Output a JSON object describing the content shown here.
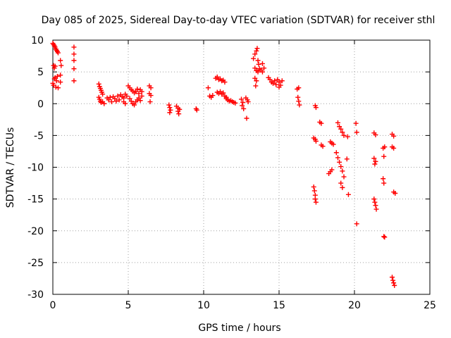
{
  "chart_data": {
    "type": "scatter",
    "title": "Day 085 of 2025, Sidereal Day-to-day VTEC variation (SDTVAR) for receiver sthl",
    "xlabel": "GPS time / hours",
    "ylabel": "SDTVAR / TECUs",
    "xlim": [
      0,
      25
    ],
    "ylim": [
      -30,
      10
    ],
    "xticks": [
      0,
      5,
      10,
      15,
      20,
      25
    ],
    "yticks": [
      10,
      5,
      0,
      -5,
      -10,
      -15,
      -20,
      -25,
      -30
    ],
    "grid": true,
    "marker": "+",
    "series_color": "#ff0000",
    "series": [
      {
        "name": "SDTVAR",
        "points": [
          [
            0.0,
            9.5
          ],
          [
            0.05,
            9.3
          ],
          [
            0.1,
            9.1
          ],
          [
            0.15,
            8.9
          ],
          [
            0.2,
            8.6
          ],
          [
            0.25,
            8.4
          ],
          [
            0.3,
            8.2
          ],
          [
            0.35,
            8.0
          ],
          [
            0.05,
            6.0
          ],
          [
            0.1,
            5.6
          ],
          [
            0.15,
            5.9
          ],
          [
            0.0,
            3.2
          ],
          [
            0.05,
            2.9
          ],
          [
            0.1,
            3.9
          ],
          [
            0.15,
            4.1
          ],
          [
            0.2,
            2.6
          ],
          [
            0.25,
            3.6
          ],
          [
            0.3,
            4.3
          ],
          [
            0.35,
            2.5
          ],
          [
            0.5,
            6.8
          ],
          [
            0.55,
            6.0
          ],
          [
            0.5,
            4.5
          ],
          [
            0.5,
            3.4
          ],
          [
            1.4,
            8.9
          ],
          [
            1.4,
            7.8
          ],
          [
            1.4,
            6.8
          ],
          [
            1.4,
            5.5
          ],
          [
            1.4,
            3.6
          ],
          [
            3.05,
            3.1
          ],
          [
            3.1,
            2.7
          ],
          [
            3.15,
            2.4
          ],
          [
            3.2,
            2.1
          ],
          [
            3.25,
            1.8
          ],
          [
            3.3,
            1.5
          ],
          [
            3.05,
            1.0
          ],
          [
            3.1,
            0.7
          ],
          [
            3.15,
            0.4
          ],
          [
            3.2,
            0.2
          ],
          [
            3.3,
            0.3
          ],
          [
            3.4,
            0.0
          ],
          [
            3.6,
            0.9
          ],
          [
            3.7,
            0.6
          ],
          [
            3.8,
            1.0
          ],
          [
            3.9,
            0.3
          ],
          [
            4.0,
            1.1
          ],
          [
            4.1,
            0.8
          ],
          [
            4.2,
            0.4
          ],
          [
            4.3,
            1.2
          ],
          [
            4.4,
            0.6
          ],
          [
            4.5,
            1.4
          ],
          [
            4.6,
            1.1
          ],
          [
            4.7,
            0.9
          ],
          [
            4.7,
            0.3
          ],
          [
            4.8,
            1.5
          ],
          [
            4.8,
            0.0
          ],
          [
            4.9,
            1.2
          ],
          [
            5.0,
            2.8
          ],
          [
            5.1,
            2.5
          ],
          [
            5.2,
            2.2
          ],
          [
            5.3,
            2.0
          ],
          [
            5.4,
            1.7
          ],
          [
            5.5,
            1.9
          ],
          [
            5.6,
            2.3
          ],
          [
            5.7,
            1.6
          ],
          [
            5.8,
            2.2
          ],
          [
            5.9,
            1.9
          ],
          [
            5.1,
            0.8
          ],
          [
            5.2,
            0.4
          ],
          [
            5.3,
            0.0
          ],
          [
            5.4,
            -0.2
          ],
          [
            5.5,
            0.3
          ],
          [
            5.6,
            0.6
          ],
          [
            5.7,
            0.9
          ],
          [
            5.8,
            0.5
          ],
          [
            5.9,
            1.2
          ],
          [
            6.4,
            2.8
          ],
          [
            6.5,
            2.5
          ],
          [
            6.4,
            1.6
          ],
          [
            6.5,
            1.3
          ],
          [
            6.45,
            0.3
          ],
          [
            7.7,
            -0.2
          ],
          [
            7.75,
            -0.6
          ],
          [
            7.8,
            -1.0
          ],
          [
            7.75,
            -1.4
          ],
          [
            8.2,
            -0.4
          ],
          [
            8.3,
            -0.7
          ],
          [
            8.4,
            -0.9
          ],
          [
            8.3,
            -1.2
          ],
          [
            8.35,
            -1.6
          ],
          [
            9.5,
            -0.8
          ],
          [
            9.55,
            -1.0
          ],
          [
            10.3,
            2.5
          ],
          [
            10.4,
            1.2
          ],
          [
            10.5,
            1.0
          ],
          [
            10.6,
            1.3
          ],
          [
            10.8,
            4.0
          ],
          [
            10.9,
            4.2
          ],
          [
            11.0,
            3.8
          ],
          [
            11.1,
            3.9
          ],
          [
            11.2,
            3.6
          ],
          [
            11.3,
            3.7
          ],
          [
            11.4,
            3.4
          ],
          [
            10.9,
            1.8
          ],
          [
            11.0,
            1.6
          ],
          [
            11.1,
            1.9
          ],
          [
            11.2,
            1.5
          ],
          [
            11.3,
            1.7
          ],
          [
            11.4,
            1.2
          ],
          [
            11.5,
            1.0
          ],
          [
            11.5,
            0.8
          ],
          [
            11.6,
            0.6
          ],
          [
            11.7,
            0.4
          ],
          [
            11.8,
            0.5
          ],
          [
            11.9,
            0.3
          ],
          [
            12.0,
            0.2
          ],
          [
            12.1,
            0.1
          ],
          [
            12.5,
            0.7
          ],
          [
            12.6,
            0.2
          ],
          [
            12.55,
            -0.3
          ],
          [
            12.65,
            -0.8
          ],
          [
            12.8,
            0.9
          ],
          [
            12.9,
            0.6
          ],
          [
            12.95,
            0.3
          ],
          [
            12.85,
            -2.3
          ],
          [
            13.3,
            7.1
          ],
          [
            13.4,
            7.8
          ],
          [
            13.5,
            8.3
          ],
          [
            13.55,
            8.7
          ],
          [
            13.6,
            6.8
          ],
          [
            13.65,
            6.2
          ],
          [
            13.4,
            5.6
          ],
          [
            13.5,
            5.2
          ],
          [
            13.6,
            5.0
          ],
          [
            13.7,
            5.5
          ],
          [
            13.8,
            5.3
          ],
          [
            13.9,
            5.0
          ],
          [
            14.0,
            5.6
          ],
          [
            13.4,
            4.0
          ],
          [
            13.5,
            3.6
          ],
          [
            13.45,
            2.8
          ],
          [
            13.9,
            6.3
          ],
          [
            14.3,
            4.1
          ],
          [
            14.4,
            3.8
          ],
          [
            14.5,
            3.4
          ],
          [
            14.6,
            3.2
          ],
          [
            14.7,
            3.6
          ],
          [
            14.8,
            3.0
          ],
          [
            14.9,
            3.8
          ],
          [
            15.0,
            3.4
          ],
          [
            15.1,
            2.9
          ],
          [
            15.2,
            3.6
          ],
          [
            15.0,
            2.6
          ],
          [
            16.2,
            2.3
          ],
          [
            16.3,
            2.5
          ],
          [
            16.25,
            1.0
          ],
          [
            16.3,
            0.4
          ],
          [
            16.35,
            -0.2
          ],
          [
            17.4,
            -0.3
          ],
          [
            17.45,
            -0.6
          ],
          [
            17.3,
            -5.4
          ],
          [
            17.4,
            -5.6
          ],
          [
            17.45,
            -5.9
          ],
          [
            17.3,
            -13.1
          ],
          [
            17.35,
            -13.7
          ],
          [
            17.4,
            -14.4
          ],
          [
            17.4,
            -15.0
          ],
          [
            17.45,
            -15.5
          ],
          [
            17.7,
            -2.9
          ],
          [
            17.8,
            -3.1
          ],
          [
            17.8,
            -6.5
          ],
          [
            17.9,
            -6.7
          ],
          [
            18.4,
            -6.0
          ],
          [
            18.5,
            -6.2
          ],
          [
            18.6,
            -6.4
          ],
          [
            18.3,
            -11.0
          ],
          [
            18.4,
            -10.7
          ],
          [
            18.5,
            -10.4
          ],
          [
            18.8,
            -7.7
          ],
          [
            18.9,
            -8.5
          ],
          [
            19.0,
            -9.2
          ],
          [
            19.1,
            -9.9
          ],
          [
            19.2,
            -10.6
          ],
          [
            19.3,
            -11.5
          ],
          [
            18.9,
            -3.0
          ],
          [
            19.0,
            -3.6
          ],
          [
            19.1,
            -4.0
          ],
          [
            19.2,
            -4.5
          ],
          [
            19.3,
            -5.0
          ],
          [
            19.1,
            -12.5
          ],
          [
            19.2,
            -13.2
          ],
          [
            19.5,
            -8.7
          ],
          [
            19.6,
            -14.3
          ],
          [
            19.55,
            -5.2
          ],
          [
            20.1,
            -3.1
          ],
          [
            20.15,
            -4.5
          ],
          [
            20.15,
            -18.9
          ],
          [
            21.3,
            -4.6
          ],
          [
            21.4,
            -4.9
          ],
          [
            21.3,
            -8.6
          ],
          [
            21.4,
            -9.1
          ],
          [
            21.35,
            -9.5
          ],
          [
            21.3,
            -15.0
          ],
          [
            21.35,
            -15.5
          ],
          [
            21.4,
            -16.0
          ],
          [
            21.45,
            -16.6
          ],
          [
            21.9,
            -7.0
          ],
          [
            22.0,
            -6.8
          ],
          [
            21.95,
            -8.3
          ],
          [
            21.9,
            -11.8
          ],
          [
            21.95,
            -12.5
          ],
          [
            21.95,
            -20.9
          ],
          [
            22.0,
            -21.0
          ],
          [
            22.5,
            -4.8
          ],
          [
            22.6,
            -5.1
          ],
          [
            22.5,
            -6.8
          ],
          [
            22.6,
            -7.0
          ],
          [
            22.6,
            -13.9
          ],
          [
            22.7,
            -14.1
          ],
          [
            22.5,
            -27.3
          ],
          [
            22.55,
            -27.8
          ],
          [
            22.6,
            -28.2
          ],
          [
            22.65,
            -28.6
          ]
        ]
      }
    ]
  }
}
